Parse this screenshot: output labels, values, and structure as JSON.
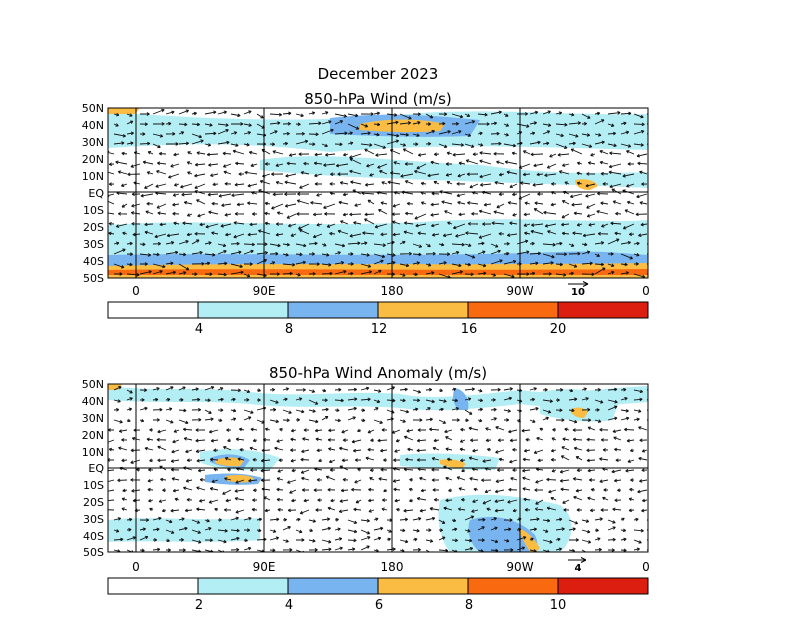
{
  "figure_title": "December 2023",
  "panels": [
    {
      "title": "850-hPa Wind (m/s)",
      "lat_labels": [
        "50N",
        "40N",
        "30N",
        "20N",
        "10N",
        "EQ",
        "10S",
        "20S",
        "30S",
        "40S",
        "50S"
      ],
      "lon_labels": [
        "0",
        "90E",
        "180",
        "90W",
        "0"
      ],
      "reference_vector": "10",
      "colorbar_labels": [
        "4",
        "8",
        "12",
        "16",
        "20"
      ]
    },
    {
      "title": "850-hPa Wind Anomaly (m/s)",
      "lat_labels": [
        "50N",
        "40N",
        "30N",
        "20N",
        "10N",
        "EQ",
        "10S",
        "20S",
        "30S",
        "40S",
        "50S"
      ],
      "lon_labels": [
        "0",
        "90E",
        "180",
        "90W",
        "0"
      ],
      "reference_vector": "4",
      "colorbar_labels": [
        "2",
        "4",
        "6",
        "8",
        "10"
      ]
    }
  ],
  "colorbar_colors": [
    "#ffffff",
    "#b4eef5",
    "#78b4f0",
    "#fbbc44",
    "#f96a10",
    "#dc1e10"
  ],
  "colors": {
    "light_blue": "#b4eef5",
    "mid_blue": "#78b4f0",
    "orange_light": "#fbbc44",
    "orange": "#f96a10",
    "red": "#dc1e10"
  }
}
